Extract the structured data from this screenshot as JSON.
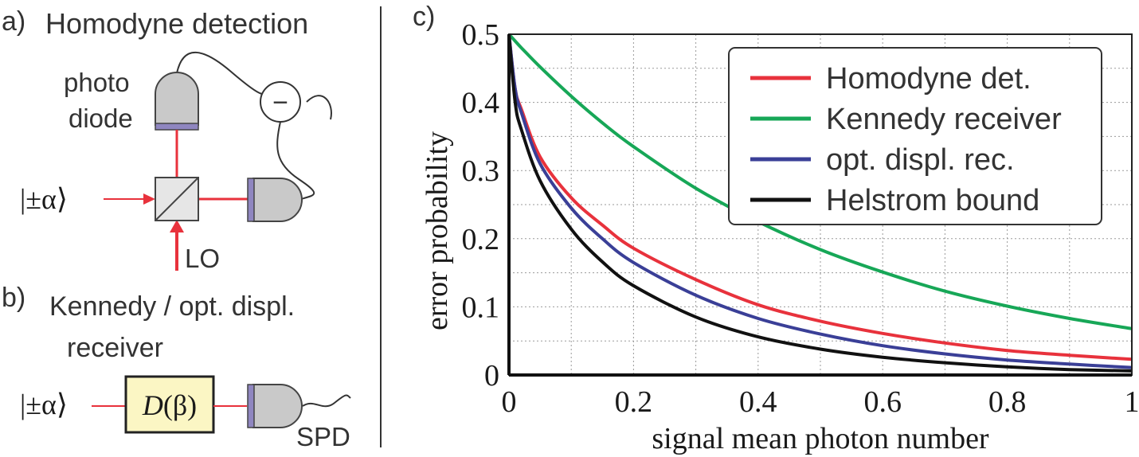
{
  "panel_a": {
    "label": "a)",
    "title": "Homodyne detection",
    "photodiode_line1": "photo",
    "photodiode_line2": "diode",
    "input_state": "|±α⟩",
    "lo_label": "LO",
    "subtract_symbol": "−"
  },
  "panel_b": {
    "label": "b)",
    "title_line1": "Kennedy / opt. displ.",
    "title_line2": "receiver",
    "input_state": "|±α⟩",
    "displacement_D": "D",
    "displacement_arg": "(β)",
    "detector_label": "SPD"
  },
  "panel_c": {
    "label": "c)"
  },
  "colors": {
    "homodyne": "#e8323c",
    "kennedy": "#17a757",
    "opt_displ": "#3a3f97",
    "helstrom": "#111111",
    "beam": "#e8323c",
    "displacement_fill": "#fbf6c4",
    "detector_window": "#8f86c0"
  },
  "chart_data": {
    "type": "line",
    "title": "",
    "xlabel": "signal mean photon number",
    "ylabel": "error probability",
    "xlim": [
      0,
      1
    ],
    "ylim": [
      0,
      0.5
    ],
    "xticks": [
      0,
      0.2,
      0.4,
      0.6,
      0.8,
      1
    ],
    "xtick_labels": [
      "0",
      "0.2",
      "0.4",
      "0.6",
      "0.8",
      "1"
    ],
    "yticks": [
      0,
      0.1,
      0.2,
      0.3,
      0.4,
      0.5
    ],
    "ytick_labels": [
      "0",
      "0.1",
      "0.2",
      "0.3",
      "0.4",
      "0.5"
    ],
    "grid": true,
    "legend_position": "top-right",
    "x": [
      0,
      0.01,
      0.02,
      0.05,
      0.1,
      0.15,
      0.2,
      0.3,
      0.4,
      0.5,
      0.6,
      0.7,
      0.8,
      0.9,
      1.0
    ],
    "series": [
      {
        "name": "Homodyne det.",
        "color_key": "homodyne",
        "values": [
          0.5,
          0.42,
          0.39,
          0.32,
          0.26,
          0.22,
          0.186,
          0.14,
          0.103,
          0.079,
          0.061,
          0.047,
          0.036,
          0.029,
          0.023
        ]
      },
      {
        "name": "Kennedy receiver",
        "color_key": "kennedy",
        "values": [
          0.5,
          0.49,
          0.48,
          0.452,
          0.409,
          0.37,
          0.335,
          0.274,
          0.225,
          0.184,
          0.151,
          0.123,
          0.101,
          0.083,
          0.068
        ]
      },
      {
        "name": "opt. displ. rec.",
        "color_key": "opt_displ",
        "values": [
          0.5,
          0.42,
          0.385,
          0.31,
          0.245,
          0.2,
          0.165,
          0.117,
          0.083,
          0.06,
          0.043,
          0.031,
          0.022,
          0.016,
          0.011
        ]
      },
      {
        "name": "Helstrom bound",
        "color_key": "helstrom",
        "values": [
          0.5,
          0.4,
          0.36,
          0.285,
          0.214,
          0.166,
          0.131,
          0.085,
          0.056,
          0.038,
          0.026,
          0.018,
          0.012,
          0.008,
          0.006
        ]
      }
    ]
  }
}
